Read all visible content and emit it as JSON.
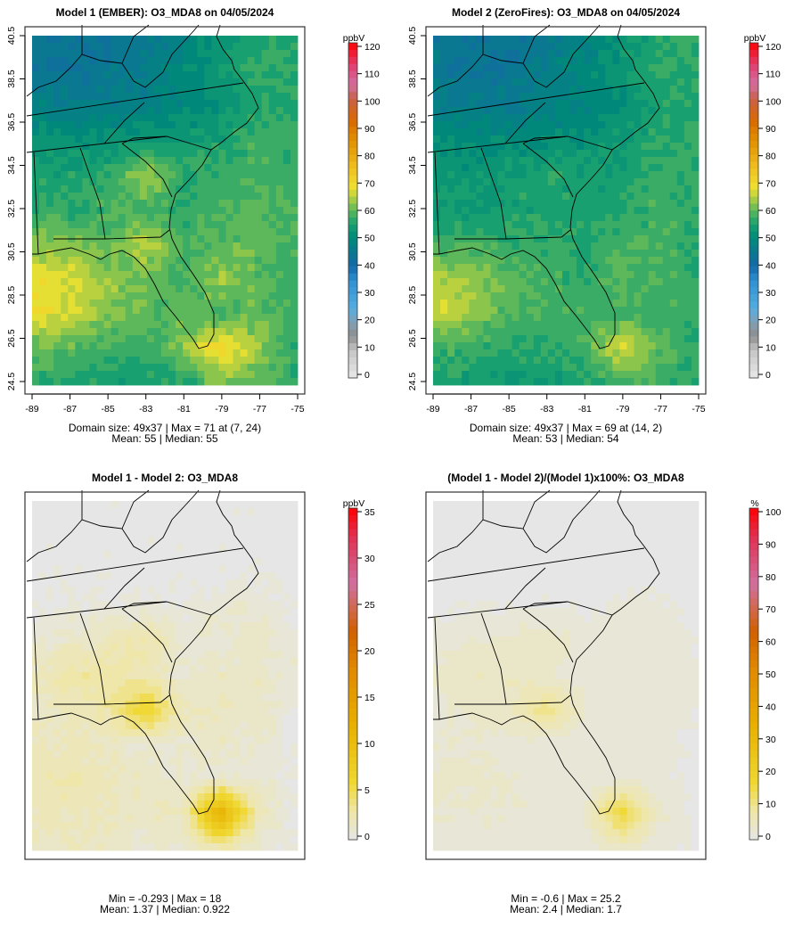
{
  "chart_data": [
    {
      "type": "heatmap",
      "title": "Model 1 (EMBER): O3_MDA8 on 04/05/2024",
      "palette": "main",
      "colorbar": {
        "label": "ppbV",
        "min": 0,
        "max": 120,
        "ticks": [
          0,
          10,
          20,
          30,
          40,
          50,
          60,
          70,
          80,
          90,
          100,
          110,
          120
        ]
      },
      "show_axes": true,
      "x_ticks": [
        -89,
        -87,
        -85,
        -83,
        -81,
        -79,
        -77,
        -75
      ],
      "y_ticks": [
        24.5,
        26.5,
        28.5,
        30.5,
        32.5,
        34.5,
        36.5,
        38.5,
        40.5
      ],
      "xlim": [
        -89,
        -75
      ],
      "ylim": [
        24.5,
        40.5
      ],
      "grid_size": {
        "cols": 37,
        "rows": 49
      },
      "coarse_values_north_to_south": [
        [
          45,
          44,
          44,
          46,
          48,
          52,
          56,
          56
        ],
        [
          45,
          44,
          45,
          47,
          50,
          53,
          57,
          56
        ],
        [
          48,
          47,
          47,
          48,
          50,
          52,
          56,
          57
        ],
        [
          52,
          52,
          52,
          54,
          54,
          55,
          58,
          57
        ],
        [
          55,
          55,
          57,
          64,
          57,
          57,
          58,
          58
        ],
        [
          57,
          56,
          58,
          58,
          57,
          58,
          60,
          58
        ],
        [
          62,
          62,
          60,
          66,
          58,
          60,
          60,
          58
        ],
        [
          68,
          67,
          63,
          60,
          58,
          63,
          60,
          58
        ],
        [
          69,
          66,
          62,
          60,
          60,
          58,
          60,
          58
        ],
        [
          60,
          60,
          58,
          57,
          62,
          71,
          64,
          57
        ],
        [
          57,
          56,
          55,
          55,
          56,
          62,
          60,
          57
        ]
      ],
      "stats_line1": "Domain size: 49x37 | Max = 71 at (7, 24)",
      "stats_line2": "Mean: 55 |  Median: 55"
    },
    {
      "type": "heatmap",
      "title": "Model 2 (ZeroFires): O3_MDA8 on 04/05/2024",
      "palette": "main",
      "colorbar": {
        "label": "ppbV",
        "min": 0,
        "max": 120,
        "ticks": [
          0,
          10,
          20,
          30,
          40,
          50,
          60,
          70,
          80,
          90,
          100,
          110,
          120
        ]
      },
      "show_axes": true,
      "x_ticks": [
        -89,
        -87,
        -85,
        -83,
        -81,
        -79,
        -77,
        -75
      ],
      "y_ticks": [
        24.5,
        26.5,
        28.5,
        30.5,
        32.5,
        34.5,
        36.5,
        38.5,
        40.5
      ],
      "xlim": [
        -89,
        -75
      ],
      "ylim": [
        24.5,
        40.5
      ],
      "grid_size": {
        "cols": 37,
        "rows": 49
      },
      "coarse_values_north_to_south": [
        [
          45,
          44,
          44,
          46,
          48,
          52,
          56,
          56
        ],
        [
          45,
          44,
          45,
          47,
          50,
          53,
          56,
          56
        ],
        [
          47,
          46,
          46,
          47,
          49,
          51,
          55,
          56
        ],
        [
          51,
          51,
          51,
          52,
          52,
          54,
          56,
          56
        ],
        [
          53,
          53,
          54,
          56,
          54,
          55,
          57,
          57
        ],
        [
          54,
          53,
          55,
          55,
          55,
          56,
          58,
          57
        ],
        [
          58,
          58,
          57,
          57,
          56,
          58,
          58,
          57
        ],
        [
          65,
          63,
          60,
          58,
          57,
          60,
          58,
          57
        ],
        [
          67,
          62,
          59,
          58,
          58,
          57,
          58,
          57
        ],
        [
          58,
          58,
          56,
          56,
          58,
          67,
          60,
          56
        ],
        [
          55,
          54,
          54,
          54,
          55,
          59,
          58,
          56
        ]
      ],
      "stats_line1": "Domain size: 49x37 | Max = 69 at (14, 2)",
      "stats_line2": "Mean: 53 |  Median: 54"
    },
    {
      "type": "heatmap",
      "title": "Model 1 - Model 2: O3_MDA8",
      "palette": "diff",
      "colorbar": {
        "label": "ppbV",
        "min": 0,
        "max": 35,
        "ticks": [
          0,
          5,
          10,
          15,
          20,
          25,
          30,
          35
        ]
      },
      "show_axes": false,
      "grid_size": {
        "cols": 37,
        "rows": 49
      },
      "coarse_values_north_to_south": [
        [
          0,
          0,
          0,
          0,
          0,
          0,
          0,
          0
        ],
        [
          0,
          0,
          0,
          0,
          0,
          0,
          0,
          0
        ],
        [
          0,
          0,
          0,
          0,
          0,
          0,
          0.5,
          0
        ],
        [
          0.3,
          0.5,
          0.5,
          0.5,
          0.5,
          1,
          1,
          0.5
        ],
        [
          1,
          1.5,
          2,
          3,
          1,
          1,
          1.5,
          0.5
        ],
        [
          2,
          3,
          3,
          2,
          1,
          1.5,
          1.5,
          1
        ],
        [
          1.5,
          2,
          3,
          7,
          2,
          1.5,
          1.5,
          0.5
        ],
        [
          2,
          2,
          1.5,
          1,
          1,
          1.5,
          1,
          0.3
        ],
        [
          2.5,
          2.5,
          2,
          1.5,
          1,
          1,
          1,
          0.3
        ],
        [
          2,
          2,
          2,
          1.5,
          2,
          12,
          2.5,
          0.3
        ],
        [
          1.5,
          1.5,
          1.5,
          1,
          1,
          3,
          1,
          0.3
        ]
      ],
      "stats_line1": "Min = -0.293 | Max = 18",
      "stats_line2": "Mean: 1.37 |  Median: 0.922"
    },
    {
      "type": "heatmap",
      "title": "(Model 1 - Model 2)/(Model 1)x100%: O3_MDA8",
      "palette": "pct",
      "colorbar": {
        "label": "%",
        "min": 0,
        "max": 100,
        "ticks": [
          0,
          10,
          20,
          30,
          40,
          50,
          60,
          70,
          80,
          90,
          100
        ]
      },
      "show_axes": false,
      "grid_size": {
        "cols": 37,
        "rows": 49
      },
      "coarse_values_north_to_south": [
        [
          0,
          0,
          0,
          0,
          0,
          0,
          0,
          0
        ],
        [
          0,
          0,
          0,
          0,
          0,
          0,
          0,
          0
        ],
        [
          0,
          0,
          0,
          0,
          0,
          0,
          0.5,
          0
        ],
        [
          0.5,
          1,
          1,
          1,
          1,
          1.5,
          1.5,
          0.5
        ],
        [
          2,
          3,
          4,
          5,
          2,
          2,
          2.5,
          1
        ],
        [
          3.5,
          5,
          5,
          3.5,
          2,
          2.5,
          2.5,
          1.5
        ],
        [
          2.5,
          3.5,
          5,
          11,
          3,
          2.5,
          2.5,
          1
        ],
        [
          3,
          3,
          2.5,
          2,
          2,
          2.5,
          2,
          0.5
        ],
        [
          3.5,
          3.5,
          3,
          2.5,
          2,
          2,
          2,
          0.5
        ],
        [
          3,
          3,
          3,
          2.5,
          3,
          17,
          4,
          0.5
        ],
        [
          2.5,
          2.5,
          2.5,
          2,
          2,
          5,
          2,
          0.5
        ]
      ],
      "stats_line1": "Min = -0.6 | Max = 25.2",
      "stats_line2": "Mean: 2.4 |  Median: 1.7"
    }
  ],
  "colors": {
    "frame": "#333333",
    "borders": "#000000"
  }
}
